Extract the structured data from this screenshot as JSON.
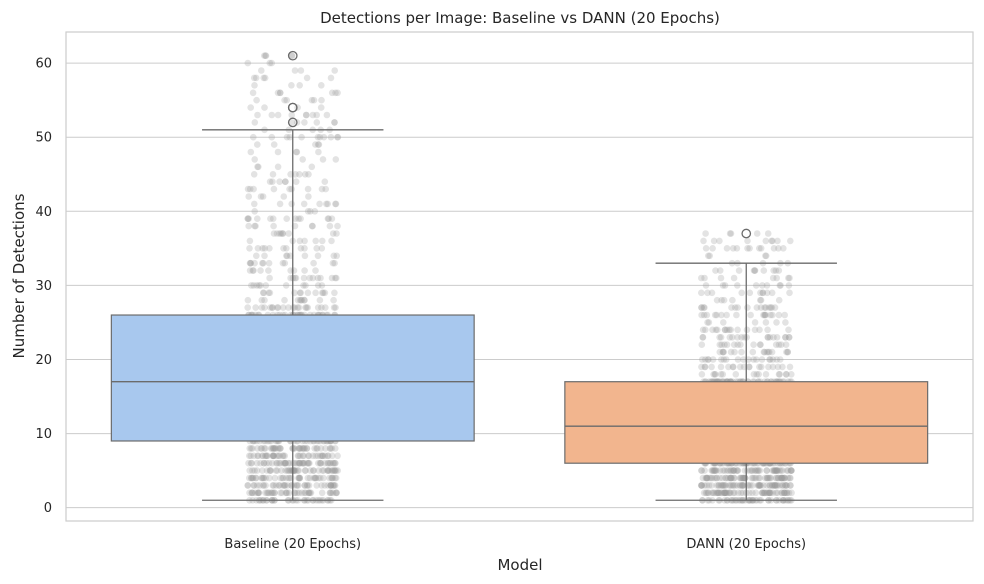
{
  "chart_data": {
    "type": "box",
    "title": "Detections per Image: Baseline vs DANN (20 Epochs)",
    "xlabel": "Model",
    "ylabel": "Number of Detections",
    "ylim": [
      -1.8,
      64.2
    ],
    "yticks": [
      0,
      10,
      20,
      30,
      40,
      50,
      60
    ],
    "grid": true,
    "categories": [
      "Baseline (20 Epochs)",
      "DANN (20 Epochs)"
    ],
    "series": [
      {
        "category": "Baseline (20 Epochs)",
        "box_color": "#a8c8ee",
        "whisker_low": 1,
        "q1": 9,
        "median": 17,
        "q3": 26,
        "whisker_high": 51,
        "outliers": [
          52,
          54,
          54,
          61
        ],
        "strip_range": [
          1,
          61
        ]
      },
      {
        "category": "DANN (20 Epochs)",
        "box_color": "#f2b58e",
        "whisker_low": 1,
        "q1": 6,
        "median": 11,
        "q3": 17,
        "whisker_high": 33,
        "outliers": [
          37
        ],
        "strip_range": [
          1,
          37
        ]
      }
    ]
  }
}
